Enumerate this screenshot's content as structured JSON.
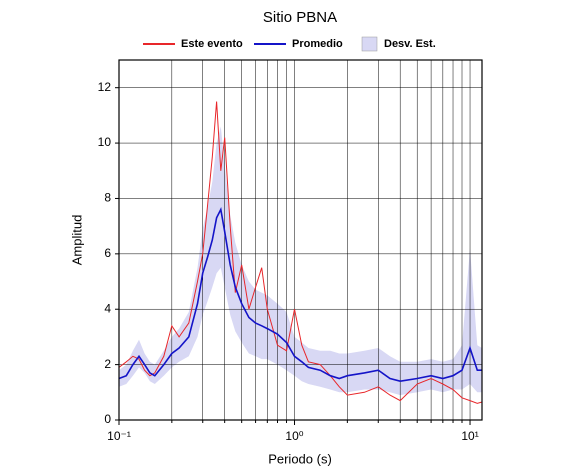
{
  "chart_data": {
    "type": "line",
    "title": "Sitio PBNA",
    "x_label": "Periodo (s)",
    "y_label": "Amplitud",
    "xscale": "log",
    "xlim": [
      0.1,
      11.7
    ],
    "ylim": [
      0,
      13
    ],
    "xticks": [
      {
        "value": 0.1,
        "label": "10⁻¹"
      },
      {
        "value": 1,
        "label": "10⁰"
      },
      {
        "value": 10,
        "label": "10¹"
      }
    ],
    "xminorticks": [
      0.2,
      0.3,
      0.4,
      0.5,
      0.6,
      0.7,
      0.8,
      0.9,
      2,
      3,
      4,
      5,
      6,
      7,
      8,
      9
    ],
    "yticks": [
      0,
      2,
      4,
      6,
      8,
      10,
      12
    ],
    "grid": true,
    "legend": "top",
    "x": [
      0.1,
      0.11,
      0.12,
      0.13,
      0.14,
      0.15,
      0.16,
      0.18,
      0.2,
      0.22,
      0.25,
      0.28,
      0.3,
      0.32,
      0.34,
      0.36,
      0.38,
      0.4,
      0.43,
      0.46,
      0.5,
      0.55,
      0.6,
      0.65,
      0.7,
      0.8,
      0.9,
      1.0,
      1.1,
      1.2,
      1.4,
      1.6,
      1.8,
      2.0,
      2.5,
      3.0,
      3.5,
      4,
      5,
      6,
      7,
      8,
      9,
      10,
      11,
      11.7
    ],
    "series": [
      {
        "name": "Este evento",
        "color": "#e8262a",
        "values": [
          1.9,
          2.1,
          2.3,
          2.2,
          1.8,
          1.6,
          1.7,
          2.3,
          3.4,
          3.0,
          3.5,
          5.0,
          6.0,
          7.8,
          9.5,
          11.5,
          9.0,
          10.2,
          7.0,
          4.6,
          5.6,
          4.0,
          4.8,
          5.5,
          4.0,
          2.7,
          2.5,
          4.0,
          2.7,
          2.1,
          2.0,
          1.6,
          1.2,
          0.9,
          1.0,
          1.2,
          0.9,
          0.7,
          1.3,
          1.5,
          1.3,
          1.1,
          0.8,
          0.7,
          0.6,
          0.65
        ]
      },
      {
        "name": "Promedio",
        "color": "#1414c8",
        "values": [
          1.5,
          1.6,
          2.0,
          2.3,
          2.0,
          1.7,
          1.6,
          2.0,
          2.4,
          2.6,
          3.0,
          4.2,
          5.3,
          5.9,
          6.5,
          7.3,
          7.6,
          6.8,
          5.6,
          4.8,
          4.2,
          3.7,
          3.5,
          3.4,
          3.3,
          3.1,
          2.8,
          2.3,
          2.1,
          1.9,
          1.8,
          1.6,
          1.5,
          1.6,
          1.7,
          1.8,
          1.5,
          1.4,
          1.5,
          1.6,
          1.5,
          1.6,
          1.8,
          2.6,
          1.8,
          1.8
        ]
      },
      {
        "name": "Desv. Est.",
        "color": "#d8d8f4",
        "lower": [
          1.2,
          1.3,
          1.6,
          1.9,
          1.7,
          1.4,
          1.3,
          1.6,
          1.9,
          2.1,
          2.3,
          3.0,
          3.8,
          4.3,
          4.8,
          5.3,
          5.5,
          4.8,
          3.8,
          3.2,
          2.8,
          2.4,
          2.3,
          2.2,
          2.2,
          2.0,
          1.8,
          1.6,
          1.4,
          1.3,
          1.2,
          1.1,
          1.0,
          1.0,
          1.1,
          1.1,
          1.0,
          0.9,
          1.0,
          1.1,
          1.0,
          1.1,
          1.1,
          1.3,
          1.0,
          1.0
        ],
        "upper": [
          1.8,
          2.0,
          2.5,
          2.9,
          2.4,
          2.1,
          2.0,
          2.5,
          3.0,
          3.3,
          3.9,
          5.5,
          6.9,
          7.7,
          8.6,
          10.0,
          10.6,
          9.2,
          7.4,
          6.4,
          5.6,
          5.0,
          4.7,
          4.6,
          4.5,
          4.2,
          3.9,
          3.0,
          2.8,
          2.6,
          2.5,
          2.5,
          2.4,
          2.4,
          2.5,
          2.6,
          2.3,
          2.1,
          2.1,
          2.2,
          2.1,
          2.2,
          2.7,
          6.2,
          2.7,
          2.6
        ]
      }
    ]
  }
}
